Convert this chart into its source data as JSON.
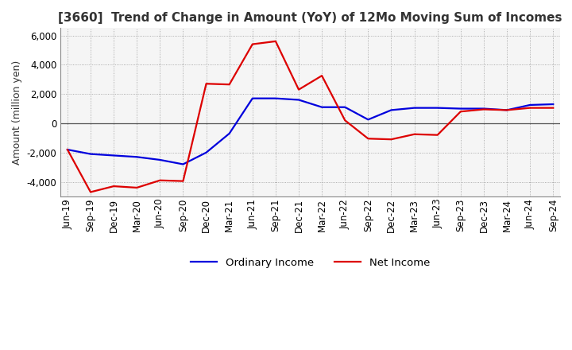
{
  "title": "[3660]  Trend of Change in Amount (YoY) of 12Mo Moving Sum of Incomes",
  "ylabel": "Amount (million yen)",
  "ylim": [
    -5000,
    6500
  ],
  "yticks": [
    -4000,
    -2000,
    0,
    2000,
    4000,
    6000
  ],
  "x_labels": [
    "Jun-19",
    "Sep-19",
    "Dec-19",
    "Mar-20",
    "Jun-20",
    "Sep-20",
    "Dec-20",
    "Mar-21",
    "Jun-21",
    "Sep-21",
    "Dec-21",
    "Mar-22",
    "Jun-22",
    "Sep-22",
    "Dec-22",
    "Mar-23",
    "Jun-23",
    "Sep-23",
    "Dec-23",
    "Mar-24",
    "Jun-24",
    "Sep-24"
  ],
  "ordinary_income": [
    -1800,
    -2100,
    -2200,
    -2300,
    -2500,
    -2800,
    -2000,
    -700,
    1700,
    1700,
    1600,
    1100,
    1100,
    250,
    900,
    1050,
    1050,
    1000,
    1000,
    900,
    1250,
    1300
  ],
  "net_income": [
    -1800,
    -4700,
    -4300,
    -4400,
    -3900,
    -3950,
    2700,
    2650,
    5400,
    5600,
    2300,
    3250,
    200,
    -1050,
    -1100,
    -750,
    -800,
    800,
    950,
    900,
    1050,
    1050
  ],
  "ordinary_income_color": "#0000dd",
  "net_income_color": "#dd0000",
  "line_width": 1.6,
  "bg_color": "#f5f5f5",
  "grid_color": "#999999",
  "title_fontsize": 11,
  "label_fontsize": 9,
  "tick_fontsize": 8.5
}
